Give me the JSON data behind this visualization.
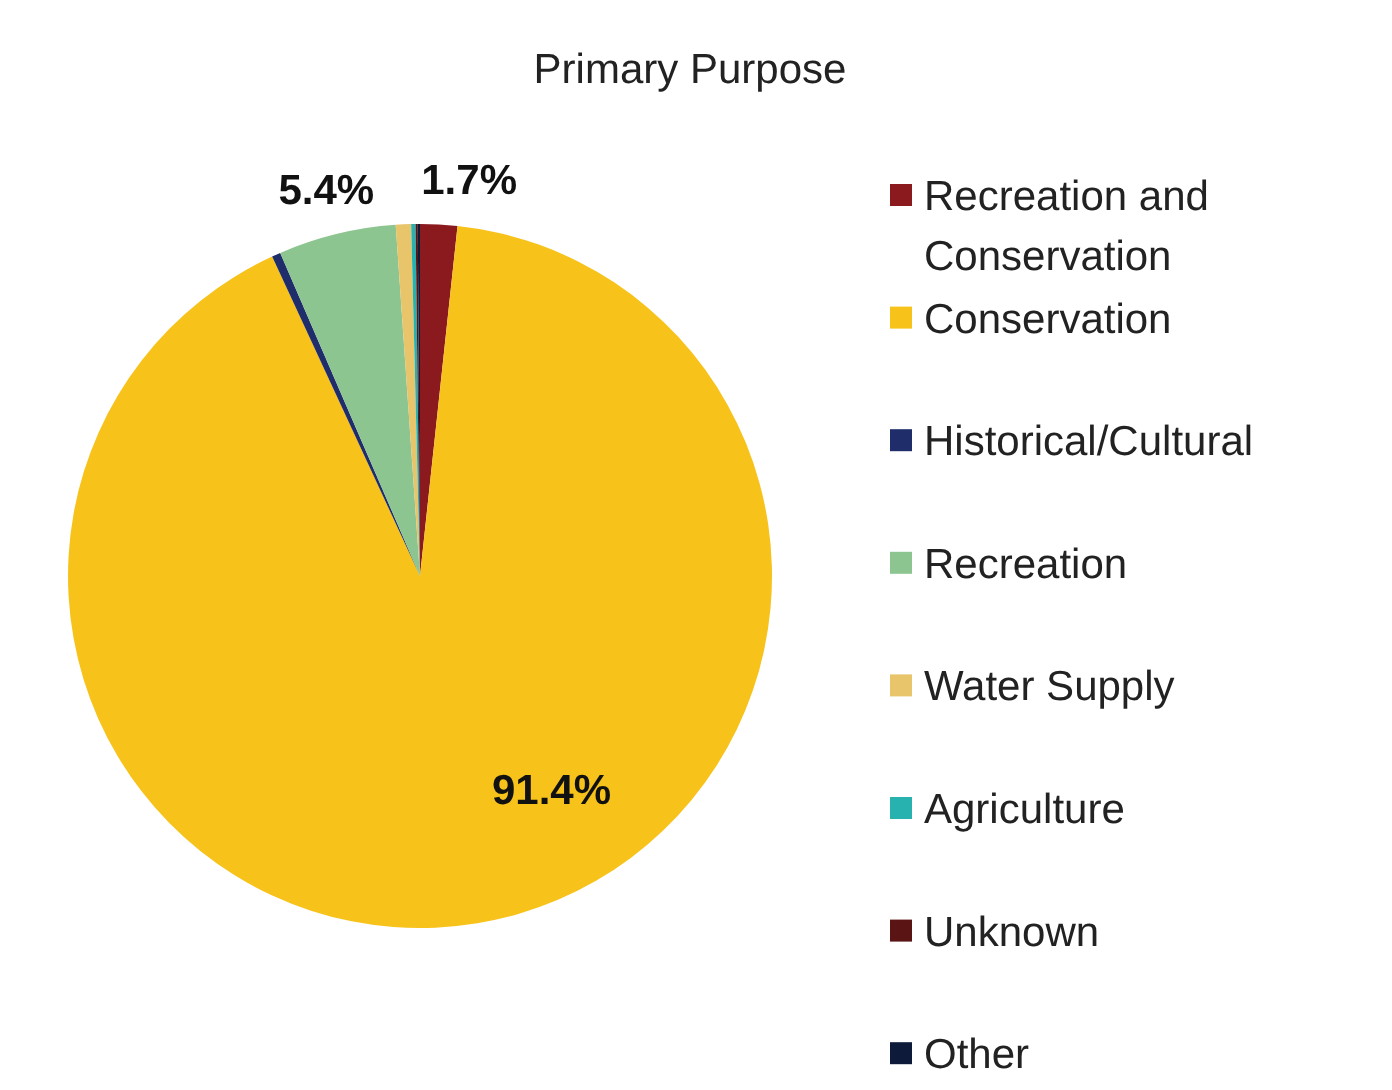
{
  "chart_data": {
    "type": "pie",
    "title": "Primary Purpose",
    "categories": [
      "Recreation and Conservation",
      "Conservation",
      "Historical/Cultural",
      "Recreation",
      "Water Supply",
      "Agriculture",
      "Unknown",
      "Other"
    ],
    "values": [
      1.7,
      91.4,
      0.4,
      5.4,
      0.7,
      0.2,
      0.1,
      0.1
    ],
    "colors": [
      "#8b1a1f",
      "#f7c21a",
      "#1f2d6b",
      "#8cc58f",
      "#e8c46a",
      "#27b2b0",
      "#5a1414",
      "#0e1a3a"
    ],
    "value_labels": [
      "1.7%",
      "91.4%",
      null,
      "5.4%",
      null,
      null,
      null,
      null
    ],
    "legend": "right"
  }
}
